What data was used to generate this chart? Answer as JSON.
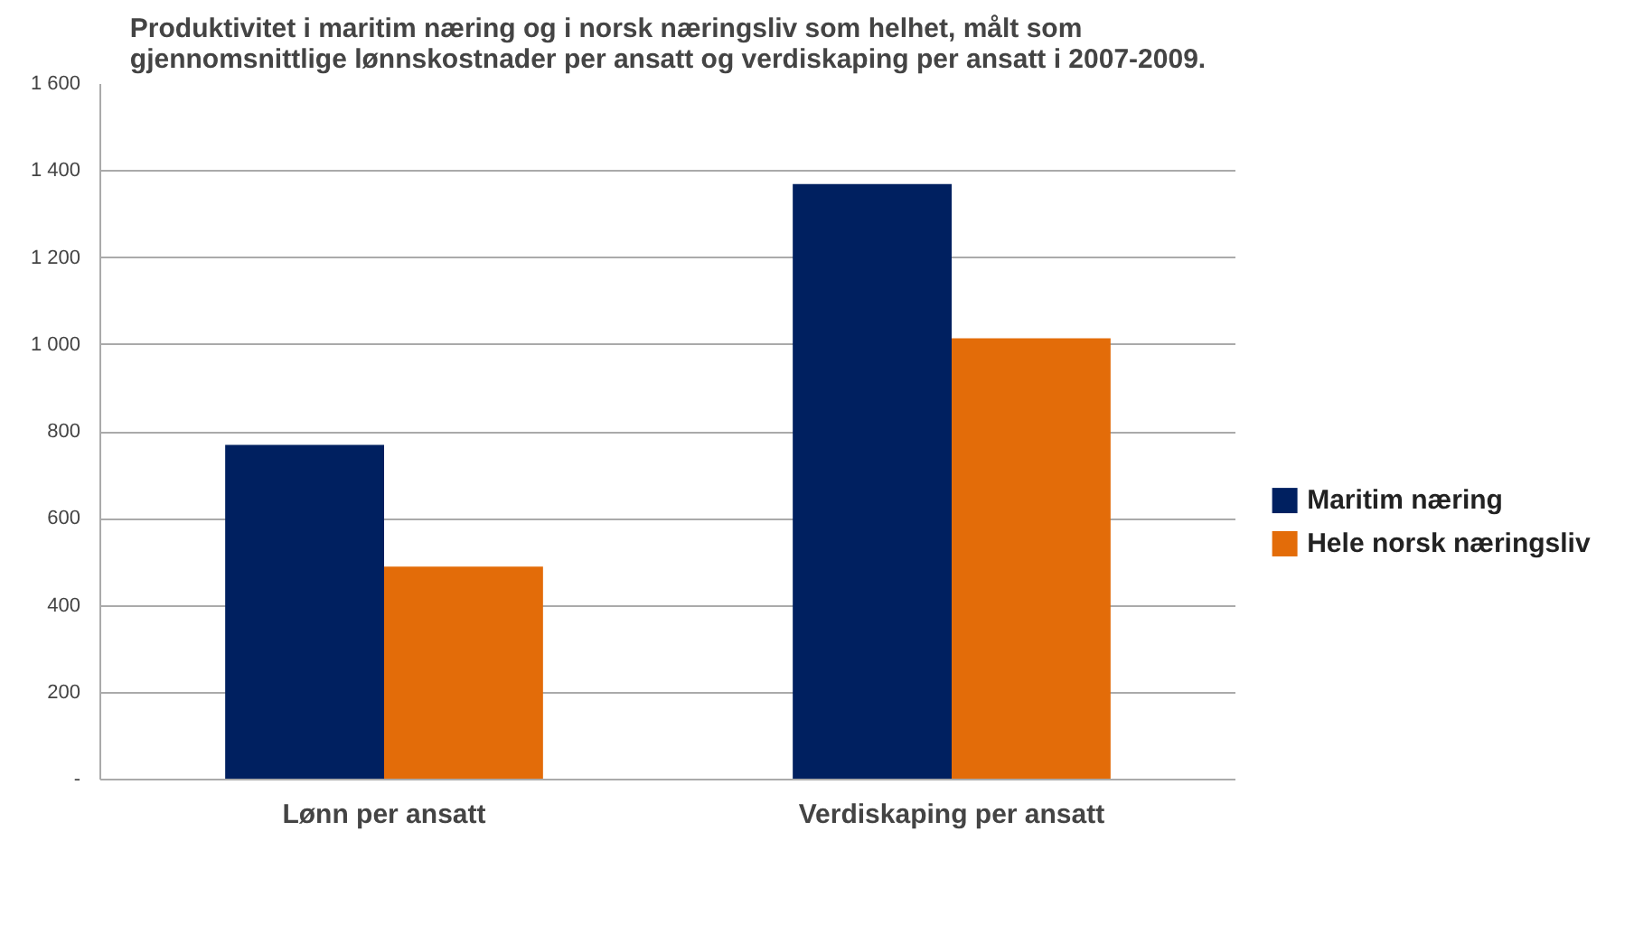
{
  "chart_data": {
    "type": "bar",
    "title": "Produktivitet i maritim næring og i norsk næringsliv som helhet, målt som\ngjennomsnittlige lønnskostnader per ansatt og verdiskaping per ansatt i 2007-2009.",
    "categories": [
      "Lønn per ansatt",
      "Verdiskaping per ansatt"
    ],
    "series": [
      {
        "name": "Maritim næring",
        "color": "#002060",
        "values": [
          770,
          1370
        ]
      },
      {
        "name": "Hele norsk næringsliv",
        "color": "#e36c09",
        "values": [
          490,
          1015
        ]
      }
    ],
    "ylim": [
      0,
      1600
    ],
    "yticks": [
      {
        "value": 0,
        "label": "-"
      },
      200,
      400,
      600,
      800,
      {
        "value": 1000,
        "label": "1 000"
      },
      {
        "value": 1200,
        "label": "1 200"
      },
      {
        "value": 1400,
        "label": "1 400"
      },
      {
        "value": 1600,
        "label": "1 600"
      }
    ],
    "grid": "y",
    "legend": "right"
  }
}
